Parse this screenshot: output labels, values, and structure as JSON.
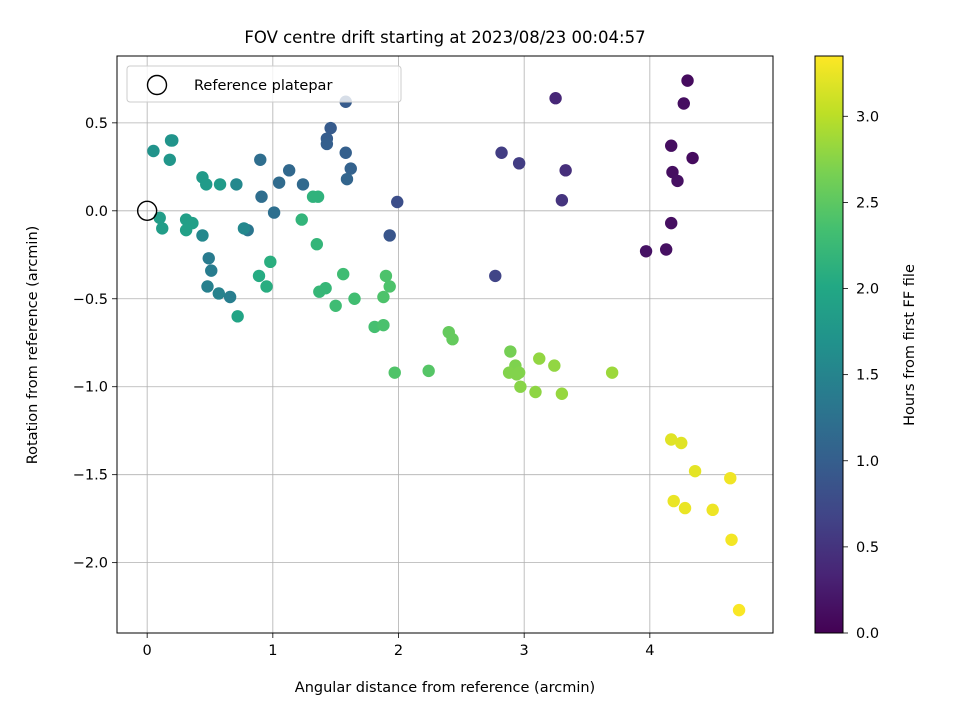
{
  "chart_data": {
    "type": "scatter",
    "title": "FOV centre drift starting at 2023/08/23 00:04:57",
    "xlabel": "Angular distance from reference (arcmin)",
    "ylabel": "Rotation from reference (arcmin)",
    "xlim": [
      -0.24,
      4.98
    ],
    "ylim": [
      -2.4,
      0.88
    ],
    "xticks": [
      0,
      1,
      2,
      3,
      4
    ],
    "yticks": [
      0.5,
      0.0,
      -0.5,
      -1.0,
      -1.5,
      -2.0
    ],
    "grid": true,
    "legend": {
      "placement": "top-left",
      "entries": [
        "Reference platepar"
      ]
    },
    "reference_point": {
      "x": 0,
      "y": 0
    },
    "colorbar": {
      "label": "Hours from first FF file",
      "colormap": "viridis",
      "range": [
        0.0,
        3.35
      ],
      "ticks": [
        0.0,
        0.5,
        1.0,
        1.5,
        2.0,
        2.5,
        3.0
      ]
    },
    "series": [
      {
        "color_by": "hours",
        "points": [
          {
            "x": 4.3,
            "y": 0.74,
            "c": 0.1
          },
          {
            "x": 4.27,
            "y": 0.61,
            "c": 0.12
          },
          {
            "x": 4.17,
            "y": 0.37,
            "c": 0.12
          },
          {
            "x": 4.34,
            "y": 0.3,
            "c": 0.1
          },
          {
            "x": 4.18,
            "y": 0.22,
            "c": 0.12
          },
          {
            "x": 4.22,
            "y": 0.17,
            "c": 0.14
          },
          {
            "x": 4.17,
            "y": -0.07,
            "c": 0.13
          },
          {
            "x": 4.13,
            "y": -0.22,
            "c": 0.14
          },
          {
            "x": 3.97,
            "y": -0.23,
            "c": 0.16
          },
          {
            "x": 3.25,
            "y": 0.64,
            "c": 0.37
          },
          {
            "x": 3.33,
            "y": 0.23,
            "c": 0.45
          },
          {
            "x": 3.3,
            "y": 0.06,
            "c": 0.5
          },
          {
            "x": 2.82,
            "y": 0.33,
            "c": 0.6
          },
          {
            "x": 2.96,
            "y": 0.27,
            "c": 0.6
          },
          {
            "x": 2.77,
            "y": -0.37,
            "c": 0.68
          },
          {
            "x": 1.99,
            "y": 0.05,
            "c": 0.8
          },
          {
            "x": 1.93,
            "y": -0.14,
            "c": 0.88
          },
          {
            "x": 1.58,
            "y": 0.62,
            "c": 0.95
          },
          {
            "x": 1.46,
            "y": 0.47,
            "c": 0.95
          },
          {
            "x": 1.43,
            "y": 0.41,
            "c": 0.98
          },
          {
            "x": 1.43,
            "y": 0.38,
            "c": 1.0
          },
          {
            "x": 1.58,
            "y": 0.33,
            "c": 1.02
          },
          {
            "x": 1.62,
            "y": 0.24,
            "c": 1.05
          },
          {
            "x": 1.59,
            "y": 0.18,
            "c": 1.08
          },
          {
            "x": 1.13,
            "y": 0.23,
            "c": 1.12
          },
          {
            "x": 1.24,
            "y": 0.15,
            "c": 1.14
          },
          {
            "x": 1.05,
            "y": 0.16,
            "c": 1.16
          },
          {
            "x": 0.9,
            "y": 0.29,
            "c": 1.2
          },
          {
            "x": 0.91,
            "y": 0.08,
            "c": 1.2
          },
          {
            "x": 1.01,
            "y": -0.01,
            "c": 1.22
          },
          {
            "x": 0.8,
            "y": -0.11,
            "c": 1.3
          },
          {
            "x": 0.49,
            "y": -0.27,
            "c": 1.38
          },
          {
            "x": 0.51,
            "y": -0.34,
            "c": 1.4
          },
          {
            "x": 0.66,
            "y": -0.49,
            "c": 1.42
          },
          {
            "x": 0.48,
            "y": -0.43,
            "c": 1.45
          },
          {
            "x": 0.57,
            "y": -0.47,
            "c": 1.47
          },
          {
            "x": 0.44,
            "y": -0.14,
            "c": 1.55
          },
          {
            "x": 0.77,
            "y": -0.1,
            "c": 1.55
          },
          {
            "x": 0.71,
            "y": 0.15,
            "c": 1.55
          },
          {
            "x": 0.05,
            "y": 0.34,
            "c": 1.7
          },
          {
            "x": 0.19,
            "y": 0.4,
            "c": 1.72
          },
          {
            "x": 0.2,
            "y": 0.4,
            "c": 1.72
          },
          {
            "x": 0.18,
            "y": 0.29,
            "c": 1.75
          },
          {
            "x": 0.44,
            "y": 0.19,
            "c": 1.8
          },
          {
            "x": 0.47,
            "y": 0.15,
            "c": 1.82
          },
          {
            "x": 0.58,
            "y": 0.15,
            "c": 1.82
          },
          {
            "x": 0.1,
            "y": -0.04,
            "c": 1.85
          },
          {
            "x": 0.12,
            "y": -0.1,
            "c": 1.85
          },
          {
            "x": 0.31,
            "y": -0.05,
            "c": 1.88
          },
          {
            "x": 0.36,
            "y": -0.07,
            "c": 1.88
          },
          {
            "x": 0.31,
            "y": -0.11,
            "c": 1.9
          },
          {
            "x": 0.72,
            "y": -0.6,
            "c": 1.95
          },
          {
            "x": 0.89,
            "y": -0.37,
            "c": 2.05
          },
          {
            "x": 0.95,
            "y": -0.43,
            "c": 2.08
          },
          {
            "x": 0.98,
            "y": -0.29,
            "c": 2.1
          },
          {
            "x": 1.32,
            "y": 0.08,
            "c": 2.15
          },
          {
            "x": 1.36,
            "y": 0.08,
            "c": 2.15
          },
          {
            "x": 1.23,
            "y": -0.05,
            "c": 2.18
          },
          {
            "x": 1.35,
            "y": -0.19,
            "c": 2.2
          },
          {
            "x": 1.37,
            "y": -0.46,
            "c": 2.22
          },
          {
            "x": 1.42,
            "y": -0.44,
            "c": 2.22
          },
          {
            "x": 1.56,
            "y": -0.36,
            "c": 2.3
          },
          {
            "x": 1.5,
            "y": -0.54,
            "c": 2.3
          },
          {
            "x": 1.65,
            "y": -0.5,
            "c": 2.32
          },
          {
            "x": 1.81,
            "y": -0.66,
            "c": 2.35
          },
          {
            "x": 1.88,
            "y": -0.65,
            "c": 2.38
          },
          {
            "x": 1.9,
            "y": -0.37,
            "c": 2.4
          },
          {
            "x": 1.93,
            "y": -0.43,
            "c": 2.4
          },
          {
            "x": 1.88,
            "y": -0.49,
            "c": 2.4
          },
          {
            "x": 1.97,
            "y": -0.92,
            "c": 2.42
          },
          {
            "x": 2.24,
            "y": -0.91,
            "c": 2.45
          },
          {
            "x": 2.4,
            "y": -0.69,
            "c": 2.55
          },
          {
            "x": 2.43,
            "y": -0.73,
            "c": 2.55
          },
          {
            "x": 2.89,
            "y": -0.8,
            "c": 2.65
          },
          {
            "x": 2.93,
            "y": -0.88,
            "c": 2.7
          },
          {
            "x": 2.88,
            "y": -0.92,
            "c": 2.72
          },
          {
            "x": 2.94,
            "y": -0.93,
            "c": 2.72
          },
          {
            "x": 2.96,
            "y": -0.92,
            "c": 2.72
          },
          {
            "x": 2.97,
            "y": -1.0,
            "c": 2.75
          },
          {
            "x": 3.09,
            "y": -1.03,
            "c": 2.78
          },
          {
            "x": 3.12,
            "y": -0.84,
            "c": 2.8
          },
          {
            "x": 3.24,
            "y": -0.88,
            "c": 2.8
          },
          {
            "x": 3.3,
            "y": -1.04,
            "c": 2.82
          },
          {
            "x": 3.7,
            "y": -0.92,
            "c": 2.85
          },
          {
            "x": 4.17,
            "y": -1.3,
            "c": 3.2
          },
          {
            "x": 4.25,
            "y": -1.32,
            "c": 3.2
          },
          {
            "x": 4.36,
            "y": -1.48,
            "c": 3.22
          },
          {
            "x": 4.19,
            "y": -1.65,
            "c": 3.25
          },
          {
            "x": 4.28,
            "y": -1.69,
            "c": 3.25
          },
          {
            "x": 4.5,
            "y": -1.7,
            "c": 3.27
          },
          {
            "x": 4.64,
            "y": -1.52,
            "c": 3.28
          },
          {
            "x": 4.65,
            "y": -1.87,
            "c": 3.3
          },
          {
            "x": 4.71,
            "y": -2.27,
            "c": 3.33
          }
        ]
      }
    ]
  }
}
